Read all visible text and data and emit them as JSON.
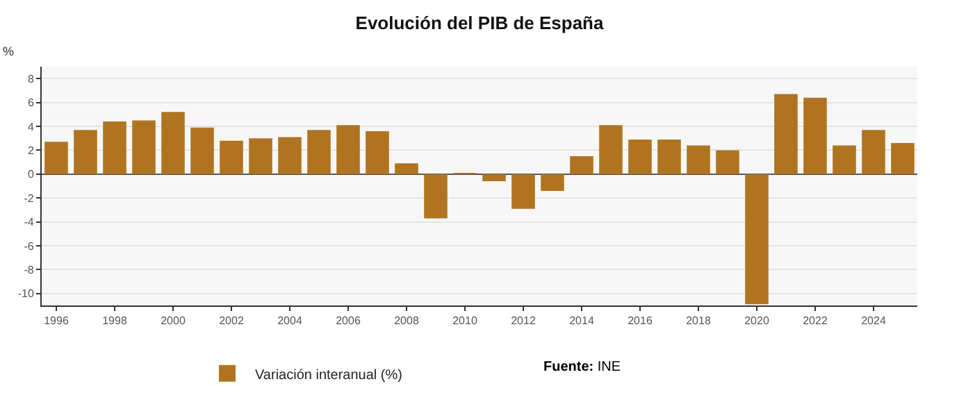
{
  "chart_data": {
    "type": "bar",
    "title": "Evolución del PIB de España",
    "ylabel": "%",
    "x": [
      1996,
      1997,
      1998,
      1999,
      2000,
      2001,
      2002,
      2003,
      2004,
      2005,
      2006,
      2007,
      2008,
      2009,
      2010,
      2011,
      2012,
      2013,
      2014,
      2015,
      2016,
      2017,
      2018,
      2019,
      2020,
      2021,
      2022,
      2023,
      2024,
      2025
    ],
    "series": [
      {
        "name": "Variación interanual (%)",
        "color": "#b07420",
        "values": [
          2.7,
          3.7,
          4.4,
          4.5,
          5.2,
          3.9,
          2.8,
          3.0,
          3.1,
          3.7,
          4.1,
          3.6,
          0.9,
          -3.7,
          0.1,
          -0.6,
          -2.9,
          -1.4,
          1.5,
          4.1,
          2.9,
          2.9,
          2.4,
          2.0,
          -10.9,
          6.7,
          6.4,
          2.4,
          3.7,
          2.6
        ]
      }
    ],
    "xlim": [
      1995.5,
      2025.5
    ],
    "xticks": [
      1996,
      1998,
      2000,
      2002,
      2004,
      2006,
      2008,
      2010,
      2012,
      2014,
      2016,
      2018,
      2020,
      2022,
      2024
    ],
    "ylim": [
      -11,
      9
    ],
    "yticks": [
      -10,
      -8,
      -6,
      -4,
      -2,
      0,
      2,
      4,
      6,
      8
    ],
    "grid": "y",
    "legend": "bottom",
    "annotations": [
      "Fuente: INE"
    ]
  }
}
